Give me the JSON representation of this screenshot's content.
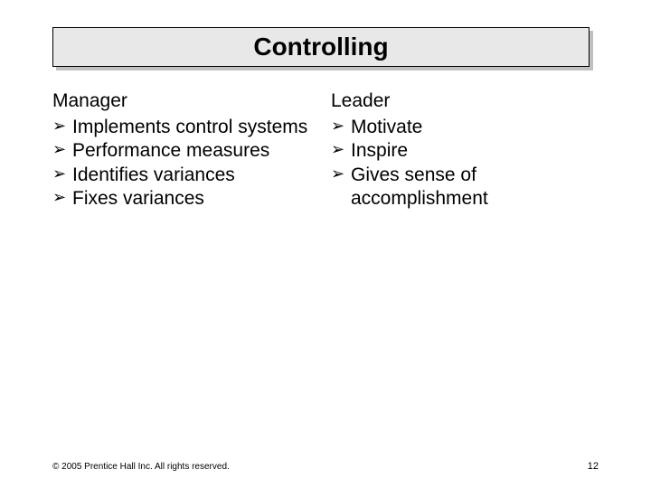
{
  "title": "Controlling",
  "columns": [
    {
      "header": "Manager",
      "items": [
        "Implements control systems",
        " Performance measures",
        "Identifies variances",
        "Fixes variances"
      ]
    },
    {
      "header": "Leader",
      "items": [
        " Motivate",
        "Inspire",
        "Gives sense of accomplishment"
      ]
    }
  ],
  "footer": {
    "copyright": "© 2005 Prentice Hall Inc. All rights reserved.",
    "page": "12"
  },
  "styling": {
    "slide_width": 720,
    "slide_height": 540,
    "background_color": "#ffffff",
    "title_box": {
      "fill": "#e8e8e8",
      "border": "#000000",
      "shadow_color": "#c0c0c0",
      "font_size": 28,
      "font_weight": "bold",
      "text_color": "#000000"
    },
    "body_font_size": 21,
    "body_text_color": "#000000",
    "bullet_glyph": "➢",
    "footer_font_size": 10,
    "footer_text_color": "#000000"
  }
}
